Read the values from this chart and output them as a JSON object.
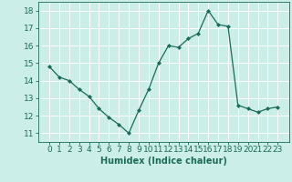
{
  "x": [
    0,
    1,
    2,
    3,
    4,
    5,
    6,
    7,
    8,
    9,
    10,
    11,
    12,
    13,
    14,
    15,
    16,
    17,
    18,
    19,
    20,
    21,
    22,
    23
  ],
  "y": [
    14.8,
    14.2,
    14.0,
    13.5,
    13.1,
    12.4,
    11.9,
    11.5,
    11.0,
    12.3,
    13.5,
    15.0,
    16.0,
    15.9,
    16.4,
    16.7,
    18.0,
    17.2,
    17.1,
    12.6,
    12.4,
    12.2,
    12.4,
    12.5
  ],
  "line_color": "#1a6b5a",
  "marker": "D",
  "marker_size": 2.0,
  "xlabel": "Humidex (Indice chaleur)",
  "ylim": [
    10.5,
    18.5
  ],
  "yticks": [
    11,
    12,
    13,
    14,
    15,
    16,
    17,
    18
  ],
  "xticks": [
    0,
    1,
    2,
    3,
    4,
    5,
    6,
    7,
    8,
    9,
    10,
    11,
    12,
    13,
    14,
    15,
    16,
    17,
    18,
    19,
    20,
    21,
    22,
    23
  ],
  "xtick_labels": [
    "0",
    "1",
    "2",
    "3",
    "4",
    "5",
    "6",
    "7",
    "8",
    "9",
    "10",
    "11",
    "12",
    "13",
    "14",
    "15",
    "16",
    "17",
    "18",
    "19",
    "20",
    "21",
    "22",
    "23"
  ],
  "background_color": "#cceee8",
  "grid_color": "#ffffff",
  "text_color": "#1a6b5a",
  "label_fontsize": 7,
  "tick_fontsize": 6.5,
  "linewidth": 0.9
}
